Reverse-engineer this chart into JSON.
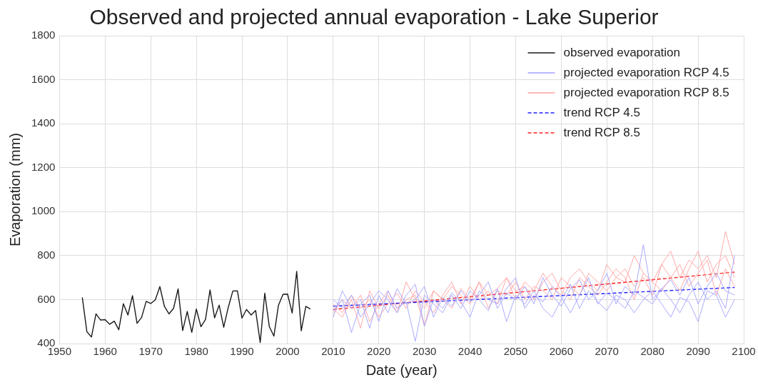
{
  "chart_data": {
    "type": "line",
    "title": "Observed and projected annual evaporation - Lake Superior",
    "xlabel": "Date (year)",
    "ylabel": "Evaporation (mm)",
    "xlim": [
      1950,
      2100
    ],
    "xticks": [
      1950,
      1960,
      1970,
      1980,
      1990,
      2000,
      2010,
      2020,
      2030,
      2040,
      2050,
      2060,
      2070,
      2080,
      2090,
      2100
    ],
    "ylim": [
      400,
      1800
    ],
    "yticks": [
      400,
      600,
      800,
      1000,
      1200,
      1400,
      1600,
      1800
    ],
    "grid": true,
    "legend": "top right",
    "marker": "none",
    "series": [
      {
        "name": "observed evaporation",
        "color": "#1a1a1a",
        "line_style": "solid",
        "x": [
          1955,
          1956,
          1957,
          1958,
          1959,
          1960,
          1961,
          1962,
          1963,
          1964,
          1965,
          1966,
          1967,
          1968,
          1969,
          1970,
          1971,
          1972,
          1973,
          1974,
          1975,
          1976,
          1977,
          1978,
          1979,
          1980,
          1981,
          1982,
          1983,
          1984,
          1985,
          1986,
          1987,
          1988,
          1989,
          1990,
          1991,
          1992,
          1993,
          1994,
          1995,
          1996,
          1997,
          1998,
          1999,
          2000,
          2001,
          2002,
          2003,
          2004,
          2005
        ],
        "values": [
          610,
          454,
          430,
          535,
          507,
          509,
          488,
          502,
          463,
          581,
          530,
          618,
          492,
          519,
          592,
          582,
          599,
          659,
          569,
          535,
          560,
          649,
          459,
          546,
          451,
          557,
          477,
          509,
          644,
          517,
          575,
          474,
          565,
          639,
          640,
          516,
          555,
          530,
          550,
          405,
          629,
          477,
          434,
          574,
          624,
          625,
          539,
          728,
          458,
          569,
          557
        ]
      },
      {
        "name": "projected evaporation RCP 4.5",
        "color": "#a0a0ff",
        "line_style": "solid",
        "x": [
          2010,
          2012,
          2014,
          2016,
          2018,
          2020,
          2022,
          2024,
          2026,
          2028,
          2030,
          2032,
          2034,
          2036,
          2038,
          2040,
          2042,
          2044,
          2046,
          2048,
          2050,
          2052,
          2054,
          2056,
          2058,
          2060,
          2062,
          2064,
          2066,
          2068,
          2070,
          2072,
          2074,
          2076,
          2078,
          2080,
          2082,
          2084,
          2086,
          2088,
          2090,
          2092,
          2094,
          2096,
          2098
        ],
        "values": [
          520,
          640,
          560,
          600,
          470,
          620,
          540,
          650,
          580,
          600,
          660,
          520,
          610,
          570,
          640,
          590,
          620,
          680,
          560,
          630,
          600,
          660,
          580,
          700,
          620,
          570,
          650,
          690,
          600,
          640,
          720,
          580,
          660,
          620,
          850,
          600,
          650,
          690,
          620,
          700,
          580,
          660,
          720,
          640,
          620
        ]
      },
      {
        "color": "#a0a0ff",
        "line_style": "solid",
        "x": [
          2010,
          2012,
          2014,
          2016,
          2018,
          2020,
          2022,
          2024,
          2026,
          2028,
          2030,
          2032,
          2034,
          2036,
          2038,
          2040,
          2042,
          2044,
          2046,
          2048,
          2050,
          2052,
          2054,
          2056,
          2058,
          2060,
          2062,
          2064,
          2066,
          2068,
          2070,
          2072,
          2074,
          2076,
          2078,
          2080,
          2082,
          2084,
          2086,
          2088,
          2090,
          2092,
          2094,
          2096,
          2098
        ],
        "values": [
          600,
          560,
          620,
          520,
          580,
          640,
          600,
          540,
          620,
          670,
          480,
          600,
          560,
          630,
          590,
          520,
          640,
          600,
          580,
          650,
          700,
          560,
          620,
          590,
          660,
          610,
          540,
          620,
          700,
          580,
          630,
          600,
          560,
          640,
          610,
          580,
          650,
          600,
          540,
          620,
          680,
          600,
          640,
          560,
          800
        ]
      },
      {
        "color": "#a0a0ff",
        "line_style": "solid",
        "x": [
          2010,
          2012,
          2014,
          2016,
          2018,
          2020,
          2022,
          2024,
          2026,
          2028,
          2030,
          2032,
          2034,
          2036,
          2038,
          2040,
          2042,
          2044,
          2046,
          2048,
          2050,
          2052,
          2054,
          2056,
          2058,
          2060,
          2062,
          2064,
          2066,
          2068,
          2070,
          2072,
          2074,
          2076,
          2078,
          2080,
          2082,
          2084,
          2086,
          2088,
          2090,
          2092,
          2094,
          2096,
          2098
        ],
        "values": [
          550,
          600,
          450,
          580,
          620,
          500,
          640,
          560,
          590,
          410,
          620,
          580,
          540,
          620,
          560,
          640,
          600,
          550,
          650,
          500,
          620,
          580,
          640,
          560,
          520,
          600,
          670,
          560,
          640,
          590,
          550,
          620,
          600,
          540,
          600,
          640,
          580,
          520,
          610,
          590,
          500,
          640,
          620,
          520,
          600
        ]
      },
      {
        "name": "projected evaporation RCP 8.5",
        "color": "#ffa0a0",
        "line_style": "solid",
        "x": [
          2010,
          2012,
          2014,
          2016,
          2018,
          2020,
          2022,
          2024,
          2026,
          2028,
          2030,
          2032,
          2034,
          2036,
          2038,
          2040,
          2042,
          2044,
          2046,
          2048,
          2050,
          2052,
          2054,
          2056,
          2058,
          2060,
          2062,
          2064,
          2066,
          2068,
          2070,
          2072,
          2074,
          2076,
          2078,
          2080,
          2082,
          2084,
          2086,
          2088,
          2090,
          2092,
          2094,
          2096,
          2098
        ],
        "values": [
          560,
          520,
          600,
          470,
          640,
          560,
          620,
          540,
          680,
          600,
          560,
          640,
          600,
          660,
          620,
          580,
          680,
          620,
          650,
          700,
          600,
          680,
          640,
          720,
          660,
          620,
          700,
          740,
          680,
          640,
          760,
          700,
          680,
          800,
          720,
          680,
          760,
          820,
          700,
          780,
          740,
          800,
          700,
          910,
          760
        ]
      },
      {
        "color": "#ffa0a0",
        "line_style": "solid",
        "x": [
          2010,
          2012,
          2014,
          2016,
          2018,
          2020,
          2022,
          2024,
          2026,
          2028,
          2030,
          2032,
          2034,
          2036,
          2038,
          2040,
          2042,
          2044,
          2046,
          2048,
          2050,
          2052,
          2054,
          2056,
          2058,
          2060,
          2062,
          2064,
          2066,
          2068,
          2070,
          2072,
          2074,
          2076,
          2078,
          2080,
          2082,
          2084,
          2086,
          2088,
          2090,
          2092,
          2094,
          2096,
          2098
        ],
        "values": [
          540,
          600,
          560,
          620,
          500,
          580,
          640,
          560,
          600,
          620,
          480,
          640,
          600,
          560,
          650,
          600,
          680,
          560,
          640,
          620,
          680,
          600,
          660,
          640,
          600,
          700,
          660,
          620,
          720,
          680,
          640,
          700,
          740,
          660,
          700,
          620,
          760,
          700,
          640,
          740,
          820,
          680,
          760,
          800,
          700
        ]
      },
      {
        "color": "#ffa0a0",
        "line_style": "solid",
        "x": [
          2010,
          2012,
          2014,
          2016,
          2018,
          2020,
          2022,
          2024,
          2026,
          2028,
          2030,
          2032,
          2034,
          2036,
          2038,
          2040,
          2042,
          2044,
          2046,
          2048,
          2050,
          2052,
          2054,
          2056,
          2058,
          2060,
          2062,
          2064,
          2066,
          2068,
          2070,
          2072,
          2074,
          2076,
          2078,
          2080,
          2082,
          2084,
          2086,
          2088,
          2090,
          2092,
          2094,
          2096,
          2098
        ],
        "values": [
          580,
          540,
          620,
          560,
          600,
          520,
          580,
          630,
          560,
          640,
          590,
          540,
          620,
          680,
          580,
          660,
          600,
          640,
          580,
          700,
          640,
          660,
          600,
          680,
          720,
          640,
          600,
          700,
          660,
          620,
          680,
          740,
          700,
          600,
          720,
          680,
          640,
          700,
          760,
          660,
          720,
          780,
          620,
          740,
          660
        ]
      },
      {
        "name": "trend RCP 4.5",
        "color": "#2020ff",
        "line_style": "dashed",
        "x": [
          2010,
          2098
        ],
        "values": [
          570,
          655
        ]
      },
      {
        "name": "trend RCP 8.5",
        "color": "#ff2020",
        "line_style": "dashed",
        "x": [
          2010,
          2098
        ],
        "values": [
          555,
          725
        ]
      }
    ]
  }
}
